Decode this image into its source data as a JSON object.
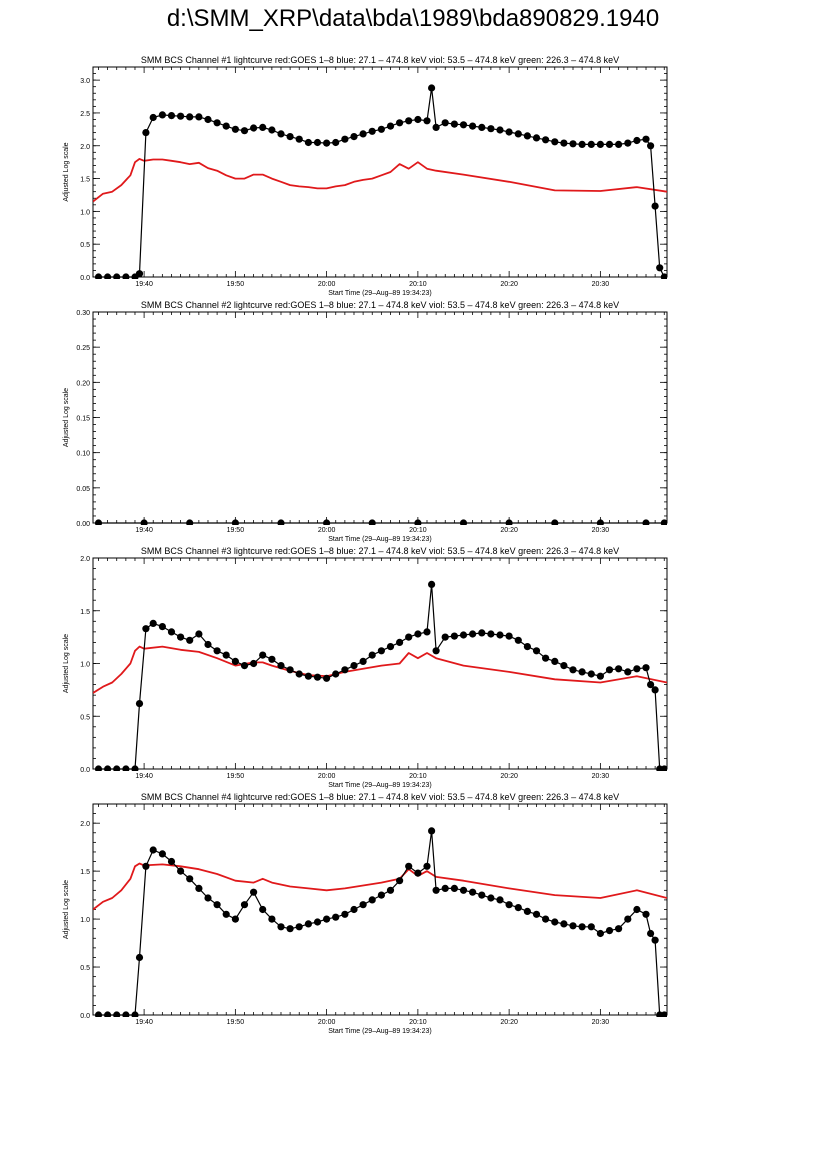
{
  "page": {
    "title": "d:\\SMM_XRP\\data\\bda\\1989\\bda890829.1940"
  },
  "colors": {
    "goes": "#e0191b",
    "bcs": "#000000"
  },
  "chart_data": [
    {
      "type": "line",
      "title": "SMM BCS Channel #1 lightcurve  red:GOES 1–8  blue: 27.1 – 474.8 keV  viol: 53.5 – 474.8 keV  green: 226.3 – 474.8 keV",
      "xlabel": "Start Time (29–Aug–89 19:34:23)",
      "ylabel": "Adjusted Log scale",
      "xlim": [
        34.4,
        97.3
      ],
      "ylim": [
        0,
        3.2
      ],
      "xticks": [
        {
          "v": 40,
          "label": "19:40"
        },
        {
          "v": 50,
          "label": "19:50"
        },
        {
          "v": 60,
          "label": "20:00"
        },
        {
          "v": 70,
          "label": "20:10"
        },
        {
          "v": 80,
          "label": "20:20"
        },
        {
          "v": 90,
          "label": "20:30"
        }
      ],
      "yticks": [
        {
          "v": 0,
          "label": "0.0"
        },
        {
          "v": 0.5,
          "label": "0.5"
        },
        {
          "v": 1,
          "label": "1.0"
        },
        {
          "v": 1.5,
          "label": "1.5"
        },
        {
          "v": 2,
          "label": "2.0"
        },
        {
          "v": 2.5,
          "label": "2.5"
        },
        {
          "v": 3,
          "label": "3.0"
        }
      ],
      "series": [
        {
          "color": "#e0191b",
          "marker": "none",
          "x": [
            34.4,
            35.5,
            36.5,
            37.5,
            38.5,
            39,
            39.5,
            40,
            41,
            42,
            43,
            44,
            45,
            46,
            47,
            48,
            49,
            50,
            51,
            52,
            53,
            54,
            55,
            56,
            57,
            58,
            59,
            60,
            61,
            62,
            63,
            64,
            65,
            66,
            67,
            68,
            69,
            70,
            71,
            72,
            75,
            80,
            85,
            90,
            94,
            97.3
          ],
          "y": [
            1.15,
            1.27,
            1.3,
            1.4,
            1.55,
            1.75,
            1.8,
            1.77,
            1.79,
            1.79,
            1.77,
            1.75,
            1.72,
            1.74,
            1.66,
            1.62,
            1.55,
            1.5,
            1.5,
            1.56,
            1.56,
            1.5,
            1.45,
            1.4,
            1.38,
            1.37,
            1.35,
            1.35,
            1.38,
            1.4,
            1.45,
            1.48,
            1.5,
            1.55,
            1.6,
            1.72,
            1.65,
            1.75,
            1.65,
            1.62,
            1.56,
            1.45,
            1.32,
            1.31,
            1.37,
            1.3
          ]
        },
        {
          "color": "#000000",
          "marker": "dot",
          "x": [
            35,
            36,
            37,
            38,
            39,
            39.5,
            40.2,
            41,
            42,
            43,
            44,
            45,
            46,
            47,
            48,
            49,
            50,
            51,
            52,
            53,
            54,
            55,
            56,
            57,
            58,
            59,
            60,
            61,
            62,
            63,
            64,
            65,
            66,
            67,
            68,
            69,
            70,
            71,
            71.5,
            72,
            73,
            74,
            75,
            76,
            77,
            78,
            79,
            80,
            81,
            82,
            83,
            84,
            85,
            86,
            87,
            88,
            89,
            90,
            91,
            92,
            93,
            94,
            95,
            95.5,
            96,
            96.5,
            97
          ],
          "y": [
            0,
            0,
            0,
            0,
            0,
            0.05,
            2.2,
            2.43,
            2.47,
            2.46,
            2.45,
            2.44,
            2.44,
            2.4,
            2.35,
            2.3,
            2.25,
            2.23,
            2.27,
            2.28,
            2.24,
            2.18,
            2.14,
            2.1,
            2.05,
            2.05,
            2.04,
            2.05,
            2.1,
            2.14,
            2.18,
            2.22,
            2.25,
            2.3,
            2.35,
            2.38,
            2.4,
            2.38,
            2.88,
            2.28,
            2.35,
            2.33,
            2.32,
            2.3,
            2.28,
            2.26,
            2.24,
            2.21,
            2.18,
            2.15,
            2.12,
            2.09,
            2.06,
            2.04,
            2.03,
            2.02,
            2.02,
            2.02,
            2.02,
            2.02,
            2.04,
            2.08,
            2.1,
            2.0,
            1.08,
            0.14,
            0
          ]
        }
      ]
    },
    {
      "type": "line",
      "title": "SMM BCS Channel #2 lightcurve  red:GOES 1–8  blue: 27.1 – 474.8 keV  viol: 53.5 – 474.8 keV  green: 226.3 – 474.8 keV",
      "xlabel": "Start Time (29–Aug–89 19:34:23)",
      "ylabel": "Adjusted Log scale",
      "xlim": [
        34.4,
        97.3
      ],
      "ylim": [
        0,
        0.3
      ],
      "xticks": [
        {
          "v": 40,
          "label": "19:40"
        },
        {
          "v": 50,
          "label": "19:50"
        },
        {
          "v": 60,
          "label": "20:00"
        },
        {
          "v": 70,
          "label": "20:10"
        },
        {
          "v": 80,
          "label": "20:20"
        },
        {
          "v": 90,
          "label": "20:30"
        }
      ],
      "yticks": [
        {
          "v": 0,
          "label": "0.00"
        },
        {
          "v": 0.05,
          "label": "0.05"
        },
        {
          "v": 0.1,
          "label": "0.10"
        },
        {
          "v": 0.15,
          "label": "0.15"
        },
        {
          "v": 0.2,
          "label": "0.20"
        },
        {
          "v": 0.25,
          "label": "0.25"
        },
        {
          "v": 0.3,
          "label": "0.30"
        }
      ],
      "series": [
        {
          "color": "#000000",
          "marker": "dot",
          "x": [
            35,
            40,
            45,
            50,
            55,
            60,
            65,
            70,
            75,
            80,
            85,
            90,
            95,
            97
          ],
          "y": [
            0,
            0,
            0,
            0,
            0,
            0,
            0,
            0,
            0,
            0,
            0,
            0,
            0,
            0
          ]
        }
      ]
    },
    {
      "type": "line",
      "title": "SMM BCS Channel #3 lightcurve  red:GOES 1–8  blue: 27.1 – 474.8 keV  viol: 53.5 – 474.8 keV  green: 226.3 – 474.8 keV",
      "xlabel": "Start Time (29–Aug–89 19:34:23)",
      "ylabel": "Adjusted Log scale",
      "xlim": [
        34.4,
        97.3
      ],
      "ylim": [
        0,
        2.0
      ],
      "xticks": [
        {
          "v": 40,
          "label": "19:40"
        },
        {
          "v": 50,
          "label": "19:50"
        },
        {
          "v": 60,
          "label": "20:00"
        },
        {
          "v": 70,
          "label": "20:10"
        },
        {
          "v": 80,
          "label": "20:20"
        },
        {
          "v": 90,
          "label": "20:30"
        }
      ],
      "yticks": [
        {
          "v": 0,
          "label": "0.0"
        },
        {
          "v": 0.5,
          "label": "0.5"
        },
        {
          "v": 1,
          "label": "1.0"
        },
        {
          "v": 1.5,
          "label": "1.5"
        },
        {
          "v": 2,
          "label": "2.0"
        }
      ],
      "series": [
        {
          "color": "#e0191b",
          "marker": "none",
          "x": [
            34.4,
            35.5,
            36.5,
            37.5,
            38.5,
            39,
            39.5,
            40,
            42,
            44,
            46,
            48,
            50,
            52,
            53,
            54,
            56,
            58,
            60,
            62,
            64,
            66,
            68,
            69,
            70,
            71,
            72,
            75,
            80,
            85,
            90,
            94,
            97.3
          ],
          "y": [
            0.72,
            0.78,
            0.82,
            0.9,
            1.0,
            1.12,
            1.16,
            1.14,
            1.16,
            1.13,
            1.11,
            1.05,
            0.98,
            1.01,
            1.01,
            0.98,
            0.93,
            0.89,
            0.88,
            0.92,
            0.95,
            0.98,
            1.0,
            1.1,
            1.05,
            1.1,
            1.05,
            0.98,
            0.92,
            0.85,
            0.82,
            0.88,
            0.82
          ]
        },
        {
          "color": "#000000",
          "marker": "dot",
          "x": [
            35,
            36,
            37,
            38,
            39,
            39.5,
            40.2,
            41,
            42,
            43,
            44,
            45,
            46,
            47,
            48,
            49,
            50,
            51,
            52,
            53,
            54,
            55,
            56,
            57,
            58,
            59,
            60,
            61,
            62,
            63,
            64,
            65,
            66,
            67,
            68,
            69,
            70,
            71,
            71.5,
            72,
            73,
            74,
            75,
            76,
            77,
            78,
            79,
            80,
            81,
            82,
            83,
            84,
            85,
            86,
            87,
            88,
            89,
            90,
            91,
            92,
            93,
            94,
            95,
            95.5,
            96,
            96.5,
            97
          ],
          "y": [
            0,
            0,
            0,
            0,
            0,
            0.62,
            1.33,
            1.38,
            1.35,
            1.3,
            1.25,
            1.22,
            1.28,
            1.18,
            1.12,
            1.08,
            1.02,
            0.98,
            1.0,
            1.08,
            1.04,
            0.98,
            0.94,
            0.9,
            0.88,
            0.87,
            0.86,
            0.9,
            0.94,
            0.98,
            1.02,
            1.08,
            1.12,
            1.16,
            1.2,
            1.25,
            1.28,
            1.3,
            1.75,
            1.12,
            1.25,
            1.26,
            1.27,
            1.28,
            1.29,
            1.28,
            1.27,
            1.26,
            1.22,
            1.16,
            1.12,
            1.05,
            1.02,
            0.98,
            0.94,
            0.92,
            0.9,
            0.88,
            0.94,
            0.95,
            0.92,
            0.95,
            0.96,
            0.8,
            0.75,
            0,
            0
          ]
        }
      ]
    },
    {
      "type": "line",
      "title": "SMM BCS Channel #4 lightcurve  red:GOES 1–8  blue: 27.1 – 474.8 keV  viol: 53.5 – 474.8 keV  green: 226.3 – 474.8 keV",
      "xlabel": "Start Time (29–Aug–89 19:34:23)",
      "ylabel": "Adjusted Log scale",
      "xlim": [
        34.4,
        97.3
      ],
      "ylim": [
        0,
        2.2
      ],
      "xticks": [
        {
          "v": 40,
          "label": "19:40"
        },
        {
          "v": 50,
          "label": "19:50"
        },
        {
          "v": 60,
          "label": "20:00"
        },
        {
          "v": 70,
          "label": "20:10"
        },
        {
          "v": 80,
          "label": "20:20"
        },
        {
          "v": 90,
          "label": "20:30"
        }
      ],
      "yticks": [
        {
          "v": 0,
          "label": "0.0"
        },
        {
          "v": 0.5,
          "label": "0.5"
        },
        {
          "v": 1,
          "label": "1.0"
        },
        {
          "v": 1.5,
          "label": "1.5"
        },
        {
          "v": 2,
          "label": "2.0"
        }
      ],
      "series": [
        {
          "color": "#e0191b",
          "marker": "none",
          "x": [
            34.4,
            35.5,
            36.5,
            37.5,
            38.5,
            39,
            39.5,
            40,
            42,
            44,
            46,
            48,
            50,
            52,
            53,
            54,
            56,
            58,
            60,
            62,
            64,
            66,
            68,
            69,
            70,
            71,
            72,
            75,
            80,
            85,
            90,
            94,
            97.3
          ],
          "y": [
            1.1,
            1.18,
            1.22,
            1.3,
            1.42,
            1.55,
            1.58,
            1.56,
            1.57,
            1.55,
            1.52,
            1.47,
            1.4,
            1.38,
            1.42,
            1.38,
            1.34,
            1.32,
            1.3,
            1.32,
            1.35,
            1.38,
            1.42,
            1.52,
            1.45,
            1.5,
            1.44,
            1.4,
            1.32,
            1.25,
            1.22,
            1.3,
            1.22
          ]
        },
        {
          "color": "#000000",
          "marker": "dot",
          "x": [
            35,
            36,
            37,
            38,
            39,
            39.5,
            40.2,
            41,
            42,
            43,
            44,
            45,
            46,
            47,
            48,
            49,
            50,
            51,
            52,
            53,
            54,
            55,
            56,
            57,
            58,
            59,
            60,
            61,
            62,
            63,
            64,
            65,
            66,
            67,
            68,
            69,
            70,
            71,
            71.5,
            72,
            73,
            74,
            75,
            76,
            77,
            78,
            79,
            80,
            81,
            82,
            83,
            84,
            85,
            86,
            87,
            88,
            89,
            90,
            91,
            92,
            93,
            94,
            95,
            95.5,
            96,
            96.5,
            97
          ],
          "y": [
            0,
            0,
            0,
            0,
            0,
            0.6,
            1.55,
            1.72,
            1.68,
            1.6,
            1.5,
            1.42,
            1.32,
            1.22,
            1.15,
            1.05,
            1.0,
            1.15,
            1.28,
            1.1,
            1.0,
            0.92,
            0.9,
            0.92,
            0.95,
            0.97,
            1.0,
            1.02,
            1.05,
            1.1,
            1.15,
            1.2,
            1.25,
            1.3,
            1.4,
            1.55,
            1.48,
            1.55,
            1.92,
            1.3,
            1.32,
            1.32,
            1.3,
            1.28,
            1.25,
            1.22,
            1.2,
            1.15,
            1.12,
            1.08,
            1.05,
            1.0,
            0.97,
            0.95,
            0.93,
            0.92,
            0.92,
            0.85,
            0.88,
            0.9,
            1.0,
            1.1,
            1.05,
            0.85,
            0.78,
            0,
            0
          ]
        }
      ]
    }
  ]
}
